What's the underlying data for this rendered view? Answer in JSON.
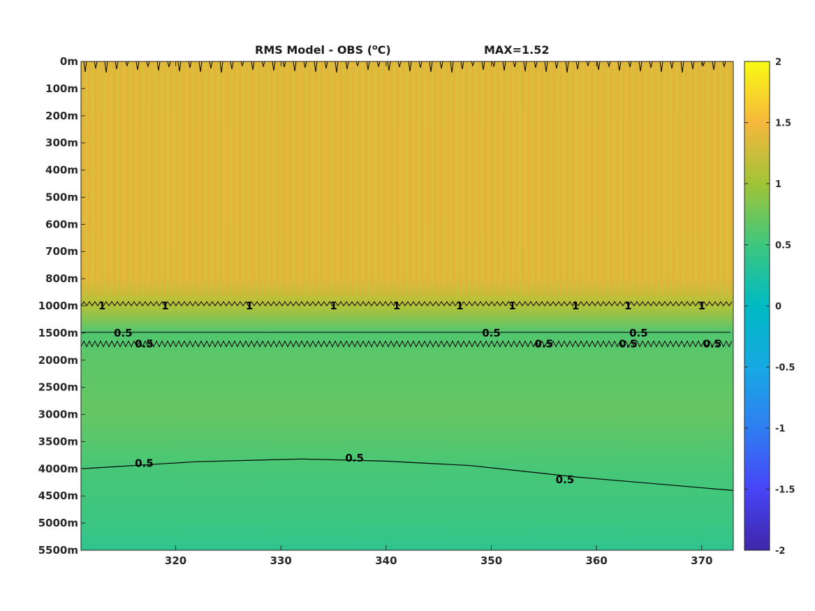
{
  "chart_data": {
    "type": "heatmap",
    "title": "RMS Model - OBS (",
    "title_unit_sup": "o",
    "title_unit_end": "C)",
    "max_label": "MAX=1.52",
    "x_ticks": [
      320,
      330,
      340,
      350,
      360,
      370
    ],
    "xlim": [
      311,
      373
    ],
    "y_ticks": [
      "0m",
      "100m",
      "200m",
      "300m",
      "400m",
      "500m",
      "600m",
      "700m",
      "800m",
      "1000m",
      "1500m",
      "2000m",
      "2500m",
      "3000m",
      "3500m",
      "4000m",
      "4500m",
      "5000m",
      "5500m"
    ],
    "depth_profile": [
      {
        "depth": "0m",
        "value": 1.35
      },
      {
        "depth": "100m",
        "value": 1.35
      },
      {
        "depth": "400m",
        "value": 1.36
      },
      {
        "depth": "800m",
        "value": 1.35
      },
      {
        "depth": "1000m",
        "value": 1.1
      },
      {
        "depth": "1500m",
        "value": 0.6
      },
      {
        "depth": "2000m",
        "value": 0.66
      },
      {
        "depth": "3000m",
        "value": 0.7
      },
      {
        "depth": "4000m",
        "value": 0.55
      },
      {
        "depth": "5000m",
        "value": 0.48
      },
      {
        "depth": "5500m",
        "value": 0.38
      }
    ],
    "contour_levels": [
      1,
      0.5
    ],
    "contour_labels": [
      {
        "text": "1",
        "x": 313,
        "depth": "1000m"
      },
      {
        "text": "1",
        "x": 319,
        "depth": "1000m"
      },
      {
        "text": "1",
        "x": 327,
        "depth": "1000m"
      },
      {
        "text": "1",
        "x": 335,
        "depth": "1000m"
      },
      {
        "text": "1",
        "x": 341,
        "depth": "1000m"
      },
      {
        "text": "1",
        "x": 347,
        "depth": "1000m"
      },
      {
        "text": "1",
        "x": 352,
        "depth": "1000m"
      },
      {
        "text": "1",
        "x": 358,
        "depth": "1000m"
      },
      {
        "text": "1",
        "x": 363,
        "depth": "1000m"
      },
      {
        "text": "1",
        "x": 370,
        "depth": "1000m"
      },
      {
        "text": "0.5",
        "x": 315,
        "depth": "1500m"
      },
      {
        "text": "0.5",
        "x": 317,
        "depth": "1700m"
      },
      {
        "text": "0.5",
        "x": 350,
        "depth": "1500m"
      },
      {
        "text": "0.5",
        "x": 355,
        "depth": "1700m"
      },
      {
        "text": "0.5",
        "x": 364,
        "depth": "1500m"
      },
      {
        "text": "0.5",
        "x": 363,
        "depth": "1700m"
      },
      {
        "text": "0.5",
        "x": 371,
        "depth": "1700m"
      },
      {
        "text": "0.5",
        "x": 317,
        "depth": "3900m"
      },
      {
        "text": "0.5",
        "x": 337,
        "depth": "3800m"
      },
      {
        "text": "0.5",
        "x": 357,
        "depth": "4200m"
      }
    ],
    "colorbar": {
      "min": -2,
      "max": 2,
      "ticks": [
        "2",
        "1.5",
        "1",
        "0.5",
        "0",
        "-0.5",
        "-1",
        "-1.5",
        "-2"
      ],
      "colormap": "parula"
    }
  }
}
